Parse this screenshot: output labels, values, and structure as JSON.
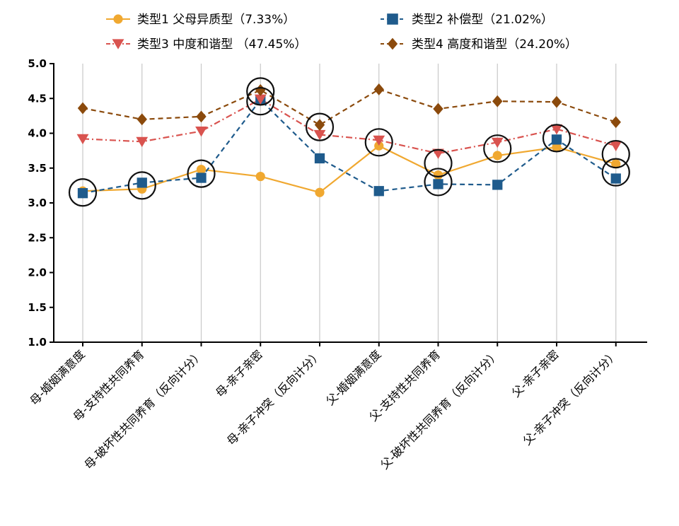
{
  "chart_data": {
    "type": "line",
    "categories": [
      "母-婚姻满意度",
      "母-支持性共同养育",
      "母-破坏性共同养育（反向计分）",
      "母-亲子亲密",
      "母-亲子冲突（反向计分）",
      "父-婚姻满意度",
      "父-支持性共同养育",
      "父-破坏性共同养育（反向计分）",
      "父-亲子亲密",
      "父-亲子冲突（反向计分）"
    ],
    "series": [
      {
        "name": "类型1 父母异质型（7.33%）",
        "color": "#f0a830",
        "marker": "circle",
        "dash": "solid",
        "values": [
          3.17,
          3.2,
          3.48,
          3.38,
          3.15,
          3.82,
          3.4,
          3.68,
          3.8,
          3.56
        ]
      },
      {
        "name": "类型2 补偿型（21.02%）",
        "color": "#1f5b8c",
        "marker": "square",
        "dash": "dashed",
        "values": [
          3.14,
          3.29,
          3.36,
          4.48,
          3.64,
          3.17,
          3.27,
          3.26,
          3.91,
          3.35
        ]
      },
      {
        "name": "类型3 中度和谐型 （47.45%）",
        "color": "#d9534f",
        "marker": "triangle-down",
        "dash": "dashdot",
        "values": [
          3.92,
          3.88,
          4.03,
          4.49,
          3.98,
          3.9,
          3.71,
          3.87,
          4.06,
          3.82
        ]
      },
      {
        "name": "类型4 高度和谐型（24.20%）",
        "color": "#8b4a0c",
        "marker": "diamond",
        "dash": "dashed",
        "values": [
          4.36,
          4.2,
          4.24,
          4.62,
          4.12,
          4.63,
          4.35,
          4.46,
          4.45,
          4.16
        ]
      }
    ],
    "ylim": [
      1.0,
      5.0
    ],
    "yticks": [
      "1.0",
      "1.5",
      "2.0",
      "2.5",
      "3.0",
      "3.5",
      "4.0",
      "4.5",
      "5.0"
    ],
    "grid": "vertical",
    "legend": "top",
    "annotations": [
      {
        "type": "circle",
        "category_index": 0,
        "y": 3.15
      },
      {
        "type": "circle",
        "category_index": 1,
        "y": 3.25
      },
      {
        "type": "circle",
        "category_index": 2,
        "y": 3.42
      },
      {
        "type": "circle",
        "category_index": 3,
        "y": 4.6
      },
      {
        "type": "circle",
        "category_index": 3,
        "y": 4.46
      },
      {
        "type": "circle",
        "category_index": 4,
        "y": 4.09
      },
      {
        "type": "circle",
        "category_index": 5,
        "y": 3.87
      },
      {
        "type": "circle",
        "category_index": 6,
        "y": 3.57
      },
      {
        "type": "circle",
        "category_index": 6,
        "y": 3.3
      },
      {
        "type": "circle",
        "category_index": 7,
        "y": 3.78
      },
      {
        "type": "circle",
        "category_index": 8,
        "y": 3.93
      },
      {
        "type": "circle",
        "category_index": 9,
        "y": 3.7
      },
      {
        "type": "circle",
        "category_index": 9,
        "y": 3.44
      }
    ]
  }
}
